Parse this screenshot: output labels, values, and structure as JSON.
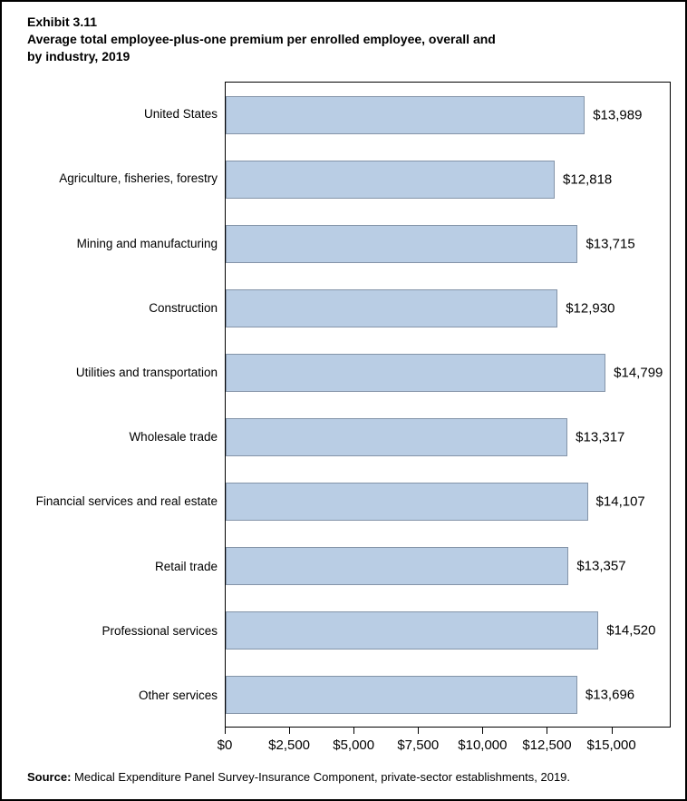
{
  "header": {
    "exhibit": "Exhibit 3.11",
    "title": "Average total employee-plus-one premium per enrolled employee, overall and\nby industry, 2019"
  },
  "source": {
    "label": "Source:",
    "text": " Medical Expenditure Panel Survey-Insurance Component, private-sector establishments, 2019."
  },
  "chart_data": {
    "type": "bar",
    "orientation": "horizontal",
    "title": "Average total employee-plus-one premium per enrolled employee, overall and by industry, 2019",
    "xlabel": "",
    "ylabel": "",
    "categories": [
      "United States",
      "Agriculture, fisheries, forestry",
      "Mining and manufacturing",
      "Construction",
      "Utilities and transportation",
      "Wholesale trade",
      "Financial services and real estate",
      "Retail trade",
      "Professional services",
      "Other services"
    ],
    "values": [
      13989,
      12818,
      13715,
      12930,
      14799,
      13317,
      14107,
      13357,
      14520,
      13696
    ],
    "value_labels": [
      "$13,989",
      "$12,818",
      "$13,715",
      "$12,930",
      "$14,799",
      "$13,317",
      "$14,107",
      "$13,357",
      "$14,520",
      "$13,696"
    ],
    "xlim": [
      0,
      17300
    ],
    "xticks": [
      0,
      2500,
      5000,
      7500,
      10000,
      12500,
      15000
    ],
    "xtick_labels": [
      "$0",
      "$2,500",
      "$5,000",
      "$7,500",
      "$10,000",
      "$12,500",
      "$15,000"
    ],
    "grid": false,
    "legend": false,
    "bar_fill": "#b9cde4",
    "bar_border": "#8494a8"
  }
}
